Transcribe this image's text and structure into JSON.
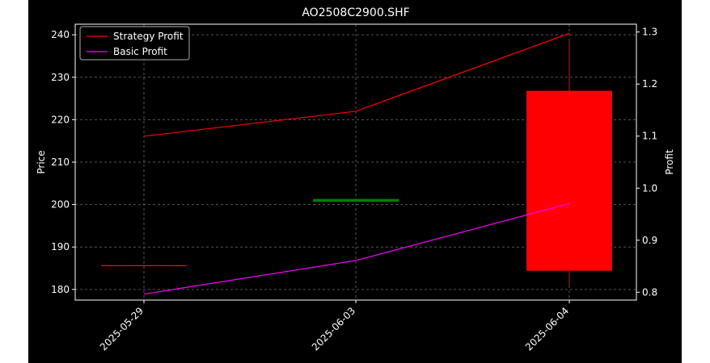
{
  "chart_data": {
    "type": "candlestick+line",
    "title": "AO2508C2900.SHF",
    "xlabel": "",
    "ylabel_left": "Price",
    "ylabel_right": "Profit",
    "x_categories": [
      "2025-05-29",
      "2025-06-03",
      "2025-06-04"
    ],
    "left_axis": {
      "ylim": [
        177.5,
        242.5
      ],
      "ticks": [
        180,
        190,
        200,
        210,
        220,
        230,
        240
      ]
    },
    "right_axis": {
      "ylim": [
        0.785,
        1.315
      ],
      "ticks": [
        0.8,
        0.9,
        1.0,
        1.1,
        1.2,
        1.3
      ]
    },
    "grid": true,
    "legend_position": "upper-left",
    "candles": [
      {
        "x": "2025-05-29",
        "open": 185.6,
        "high": 185.6,
        "low": 185.6,
        "close": 185.6,
        "color": "#ff0000"
      },
      {
        "x": "2025-06-03",
        "open": 201.0,
        "high": 201.0,
        "low": 201.0,
        "close": 201.0,
        "color": "#008000"
      },
      {
        "x": "2025-06-04",
        "open": 184.4,
        "high": 238.9,
        "low": 181.0,
        "close": 226.8,
        "color": "#ff0000"
      }
    ],
    "series": [
      {
        "name": "Strategy Profit",
        "color": "#ff0000",
        "axis": "right",
        "values": [
          1.0997,
          1.1477,
          1.2975
        ]
      },
      {
        "name": "Basic Profit",
        "color": "#ff00ff",
        "axis": "right",
        "values": [
          0.7965,
          0.861,
          0.9705
        ]
      }
    ]
  }
}
